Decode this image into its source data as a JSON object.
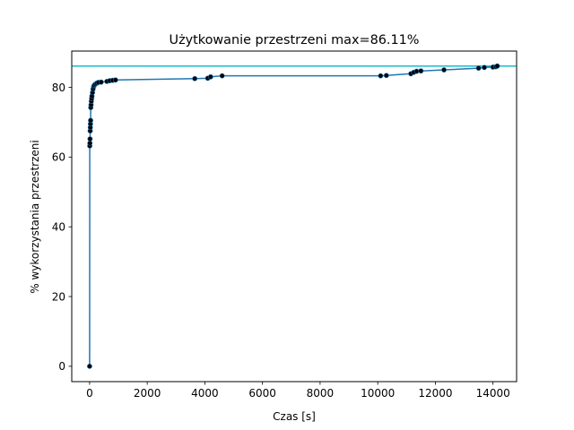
{
  "chart_data": {
    "type": "line",
    "title": "Użytkowanie przestrzeni max=86.11%",
    "xlabel": "Czas [s]",
    "ylabel": "% wykorzystania przestrzeni",
    "xlim": [
      -620,
      14820
    ],
    "ylim": [
      -4.4,
      90.4
    ],
    "xticks": [
      0,
      2000,
      4000,
      6000,
      8000,
      10000,
      12000,
      14000
    ],
    "yticks": [
      0,
      20,
      40,
      60,
      80
    ],
    "grid": false,
    "legend": "none",
    "reference_line": {
      "y": 86.11,
      "color": "#17becf"
    },
    "series": [
      {
        "color": "#1f77b4",
        "marker_color": "#000000",
        "points": [
          [
            0,
            0
          ],
          [
            5,
            63.2
          ],
          [
            10,
            64.0
          ],
          [
            15,
            65.2
          ],
          [
            20,
            67.5
          ],
          [
            25,
            68.5
          ],
          [
            30,
            69.5
          ],
          [
            35,
            70.5
          ],
          [
            40,
            74.2
          ],
          [
            50,
            75.0
          ],
          [
            60,
            76.0
          ],
          [
            70,
            76.8
          ],
          [
            80,
            77.5
          ],
          [
            100,
            78.5
          ],
          [
            120,
            79.5
          ],
          [
            140,
            80.2
          ],
          [
            160,
            80.6
          ],
          [
            200,
            80.9
          ],
          [
            250,
            81.2
          ],
          [
            300,
            81.4
          ],
          [
            400,
            81.5
          ],
          [
            600,
            81.7
          ],
          [
            700,
            81.9
          ],
          [
            800,
            82.0
          ],
          [
            900,
            82.1
          ],
          [
            3650,
            82.5
          ],
          [
            4100,
            82.6
          ],
          [
            4200,
            83.0
          ],
          [
            4600,
            83.3
          ],
          [
            10100,
            83.3
          ],
          [
            10300,
            83.4
          ],
          [
            11150,
            83.9
          ],
          [
            11250,
            84.3
          ],
          [
            11350,
            84.6
          ],
          [
            11500,
            84.7
          ],
          [
            12300,
            85.0
          ],
          [
            13500,
            85.5
          ],
          [
            13700,
            85.7
          ],
          [
            14000,
            85.8
          ],
          [
            14100,
            85.9
          ],
          [
            14150,
            86.11
          ]
        ]
      }
    ]
  }
}
